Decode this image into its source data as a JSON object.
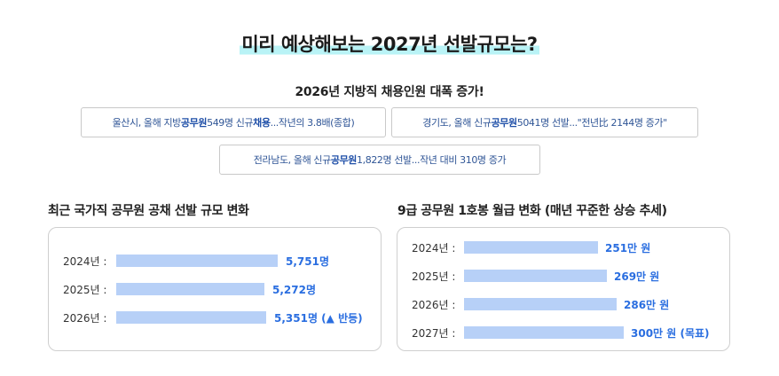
{
  "title": "미리 예상해보는 2027년 선발규모는?",
  "subtitle": "2026년 지방직 채용인원 대폭 증가!",
  "news": [
    {
      "pre": "울산시, 올해 지방",
      "b1": "공무원",
      "mid": " 549명 신규 ",
      "b2": "채용",
      "post": "...작년의 3.8배(종합)"
    },
    {
      "pre": "경기도, 올해 신규 ",
      "b1": "공무원",
      "mid": " 5041명 선발...\"전년比 2144명 증가\"",
      "b2": "",
      "post": ""
    },
    {
      "pre": "전라남도, 올해 신규 ",
      "b1": "공무원",
      "mid": " 1,822명 선발...작년 대비 310명 증가",
      "b2": "",
      "post": ""
    }
  ],
  "left_panel": {
    "title": "최근 국가직 공무원 공채 선발 규모 변화",
    "rows": [
      {
        "label": "2024년 :",
        "value_text": "5,751명",
        "value": 5751
      },
      {
        "label": "2025년 :",
        "value_text": "5,272명",
        "value": 5272
      },
      {
        "label": "2026년 :",
        "value_text": "5,351명 (▲ 반등)",
        "value": 5351
      }
    ]
  },
  "right_panel": {
    "title": "9급 공무원 1호봉 월급 변화 (매년 꾸준한 상승 추세)",
    "rows": [
      {
        "label": "2024년 :",
        "value_text": "251만 원",
        "value": 251
      },
      {
        "label": "2025년 :",
        "value_text": "269만 원",
        "value": 269
      },
      {
        "label": "2026년 :",
        "value_text": "286만 원",
        "value": 286
      },
      {
        "label": "2027년 :",
        "value_text": "300만 원 (목표)",
        "value": 300
      }
    ]
  },
  "colors": {
    "bar": "#b7d0f7",
    "value": "#2a6ee0",
    "link": "#2f5596",
    "highlight": "#b9f3f6"
  }
}
